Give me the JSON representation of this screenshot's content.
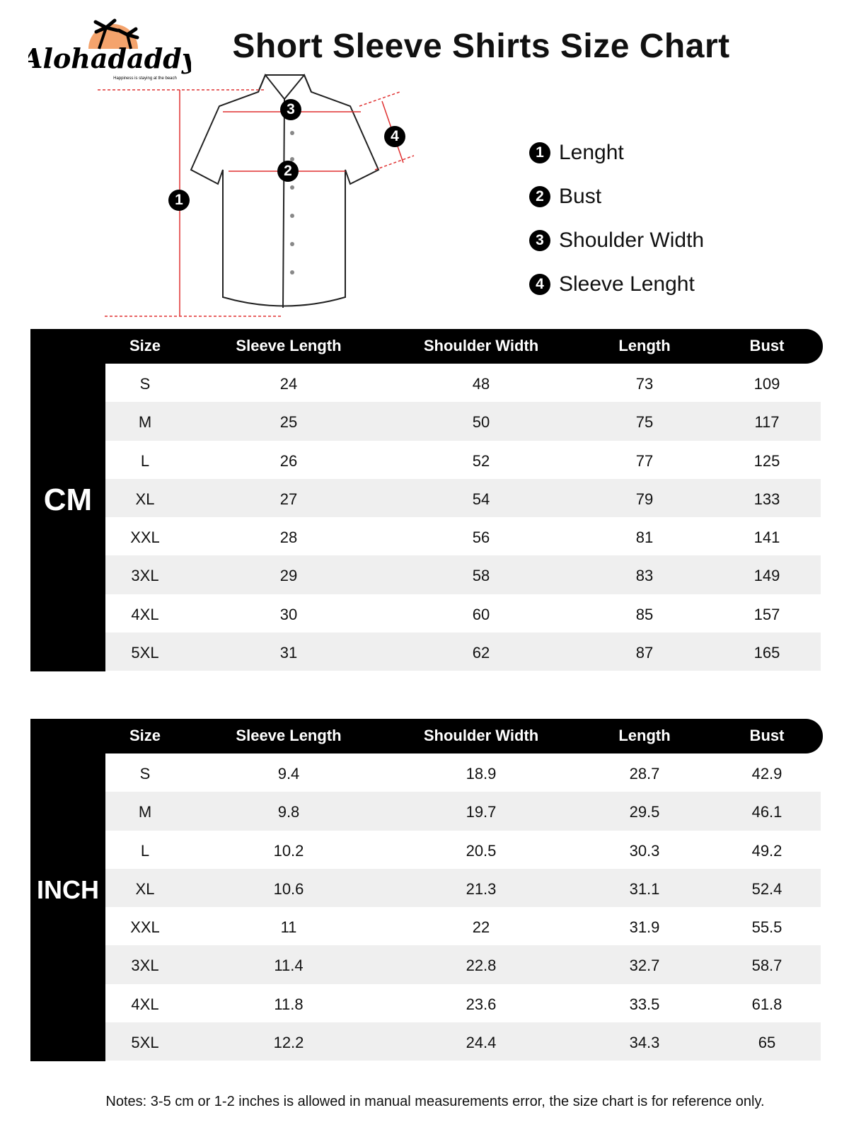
{
  "brand": {
    "name": "Alohadaddy",
    "tagline": "Happiness is staying at the beach",
    "sun_color": "#f4a36c"
  },
  "title": "Short Sleeve Shirts Size Chart",
  "diagram_markers": [
    "1",
    "2",
    "3",
    "4"
  ],
  "legend": [
    {
      "num": "1",
      "label": "Lenght"
    },
    {
      "num": "2",
      "label": "Bust"
    },
    {
      "num": "3",
      "label": "Shoulder Width"
    },
    {
      "num": "4",
      "label": "Sleeve Lenght"
    }
  ],
  "columns": [
    "Size",
    "Sleeve Length",
    "Shoulder Width",
    "Length",
    "Bust"
  ],
  "cm": {
    "unit": "CM",
    "rows": [
      [
        "S",
        "24",
        "48",
        "73",
        "109"
      ],
      [
        "M",
        "25",
        "50",
        "75",
        "117"
      ],
      [
        "L",
        "26",
        "52",
        "77",
        "125"
      ],
      [
        "XL",
        "27",
        "54",
        "79",
        "133"
      ],
      [
        "XXL",
        "28",
        "56",
        "81",
        "141"
      ],
      [
        "3XL",
        "29",
        "58",
        "83",
        "149"
      ],
      [
        "4XL",
        "30",
        "60",
        "85",
        "157"
      ],
      [
        "5XL",
        "31",
        "62",
        "87",
        "165"
      ]
    ]
  },
  "inch": {
    "unit": "INCH",
    "rows": [
      [
        "S",
        "9.4",
        "18.9",
        "28.7",
        "42.9"
      ],
      [
        "M",
        "9.8",
        "19.7",
        "29.5",
        "46.1"
      ],
      [
        "L",
        "10.2",
        "20.5",
        "30.3",
        "49.2"
      ],
      [
        "XL",
        "10.6",
        "21.3",
        "31.1",
        "52.4"
      ],
      [
        "XXL",
        "11",
        "22",
        "31.9",
        "55.5"
      ],
      [
        "3XL",
        "11.4",
        "22.8",
        "32.7",
        "58.7"
      ],
      [
        "4XL",
        "11.8",
        "23.6",
        "33.5",
        "61.8"
      ],
      [
        "5XL",
        "12.2",
        "24.4",
        "34.3",
        "65"
      ]
    ]
  },
  "notes": "Notes: 3-5 cm or 1-2 inches is allowed in manual measurements error, the size chart is for reference only."
}
